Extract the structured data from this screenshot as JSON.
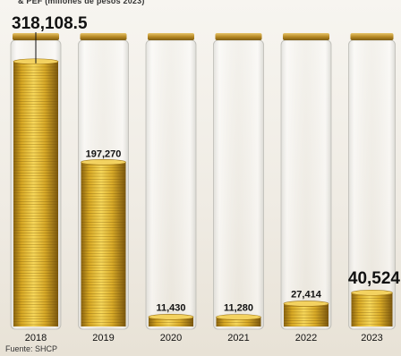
{
  "header": {
    "cut_text": "& PEF (millones de pesos 2023)"
  },
  "chart_data": {
    "type": "bar",
    "categories": [
      "2018",
      "2019",
      "2020",
      "2021",
      "2022",
      "2023"
    ],
    "values": [
      318108.5,
      197270,
      11430,
      11280,
      27414,
      40524
    ],
    "value_labels": [
      "318,108.5",
      "197,270",
      "11,430",
      "11,280",
      "27,414",
      "40,524"
    ],
    "title": "",
    "xlabel": "",
    "ylabel": "",
    "ylim": [
      0,
      320000
    ],
    "grid": false,
    "legend": "none",
    "colors": {
      "coin_light": "#f6d75a",
      "coin_mid": "#d7a823",
      "coin_dark": "#8a6410",
      "cap": "#c59a36",
      "label": "#111111"
    }
  },
  "footer": {
    "source": "Fuente: SHCP"
  }
}
